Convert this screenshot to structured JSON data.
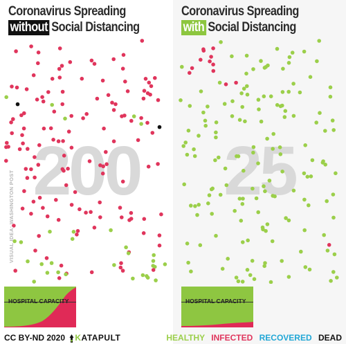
{
  "left": {
    "title_line1": "Coronavirus Spreading",
    "title_highlight": "without",
    "title_rest": "Social Distancing",
    "highlight_color": "#111111",
    "big_number": "200",
    "hospital_label": "HOSPITAL CAPACITY"
  },
  "right": {
    "title_line1": "Coronavirus Spreading",
    "title_highlight": "with",
    "title_rest": "Social Distancing",
    "highlight_color": "#8dc63f",
    "big_number": "25",
    "hospital_label": "HOSPITAL CAPACITY"
  },
  "credit": "VISUAL IDEA: WASHINGTON POST",
  "footer": {
    "license": "CC BY-ND 2020",
    "brand_k": "K",
    "brand_rest": "ATAPULT",
    "brand_icon": "rocket-icon"
  },
  "legend": {
    "healthy": "HEALTHY",
    "infected": "INFECTED",
    "recovered": "RECOVERED",
    "dead": "DEAD"
  },
  "colors": {
    "healthy": "#9bcf4a",
    "infected": "#e0355c",
    "recovered": "#21a7d6",
    "dead": "#111111",
    "chart_healthy": "#8ec641",
    "chart_infected": "#e02a57"
  }
}
